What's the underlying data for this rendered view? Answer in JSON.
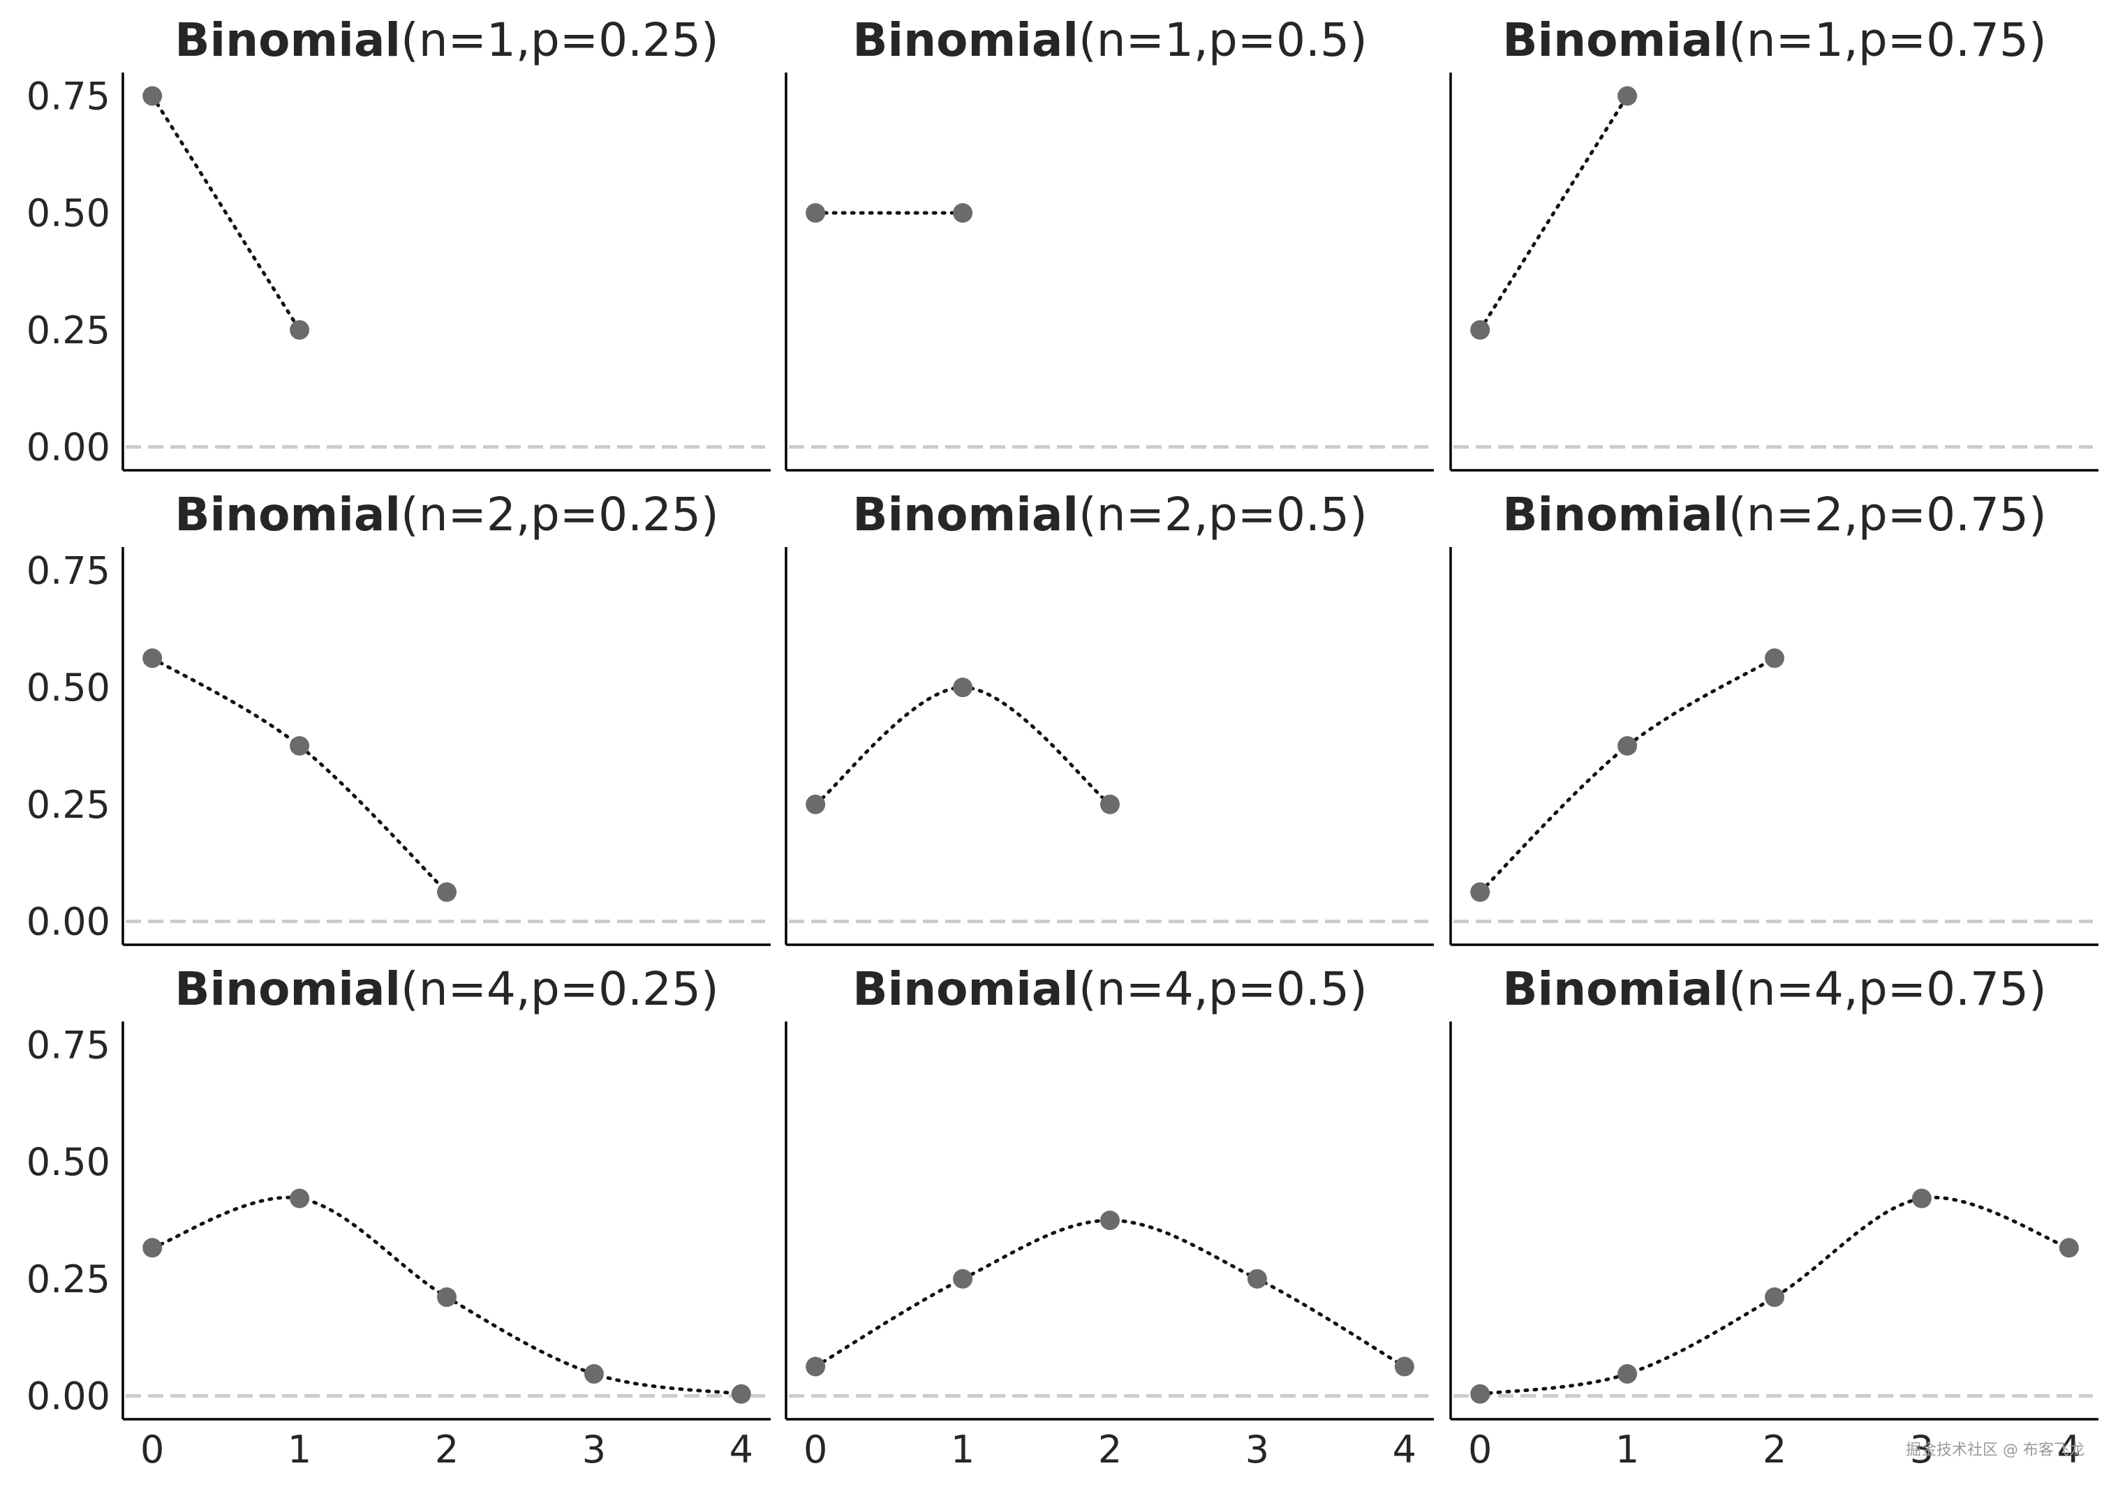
{
  "chart_data": [
    {
      "type": "line",
      "title_bold": "Binomial",
      "title_params": "(n=1,p=0.25)",
      "x": [
        0,
        1
      ],
      "values": [
        0.75,
        0.25
      ],
      "xlim": [
        -0.2,
        4.2
      ],
      "ylim": [
        -0.05,
        0.8
      ],
      "xticks": [],
      "yticks": [
        "0.00",
        "0.25",
        "0.50",
        "0.75"
      ],
      "baseline": 0
    },
    {
      "type": "line",
      "title_bold": "Binomial",
      "title_params": "(n=1,p=0.5)",
      "x": [
        0,
        1
      ],
      "values": [
        0.5,
        0.5
      ],
      "xlim": [
        -0.2,
        4.2
      ],
      "ylim": [
        -0.05,
        0.8
      ],
      "xticks": [],
      "yticks": [],
      "baseline": 0
    },
    {
      "type": "line",
      "title_bold": "Binomial",
      "title_params": "(n=1,p=0.75)",
      "x": [
        0,
        1
      ],
      "values": [
        0.25,
        0.75
      ],
      "xlim": [
        -0.2,
        4.2
      ],
      "ylim": [
        -0.05,
        0.8
      ],
      "xticks": [],
      "yticks": [],
      "baseline": 0
    },
    {
      "type": "line",
      "title_bold": "Binomial",
      "title_params": "(n=2,p=0.25)",
      "x": [
        0,
        1,
        2
      ],
      "values": [
        0.5625,
        0.375,
        0.0625
      ],
      "xlim": [
        -0.2,
        4.2
      ],
      "ylim": [
        -0.05,
        0.8
      ],
      "xticks": [],
      "yticks": [
        "0.00",
        "0.25",
        "0.50",
        "0.75"
      ],
      "baseline": 0
    },
    {
      "type": "line",
      "title_bold": "Binomial",
      "title_params": "(n=2,p=0.5)",
      "x": [
        0,
        1,
        2
      ],
      "values": [
        0.25,
        0.5,
        0.25
      ],
      "xlim": [
        -0.2,
        4.2
      ],
      "ylim": [
        -0.05,
        0.8
      ],
      "xticks": [],
      "yticks": [],
      "baseline": 0
    },
    {
      "type": "line",
      "title_bold": "Binomial",
      "title_params": "(n=2,p=0.75)",
      "x": [
        0,
        1,
        2
      ],
      "values": [
        0.0625,
        0.375,
        0.5625
      ],
      "xlim": [
        -0.2,
        4.2
      ],
      "ylim": [
        -0.05,
        0.8
      ],
      "xticks": [],
      "yticks": [],
      "baseline": 0
    },
    {
      "type": "line",
      "title_bold": "Binomial",
      "title_params": "(n=4,p=0.25)",
      "x": [
        0,
        1,
        2,
        3,
        4
      ],
      "values": [
        0.3164,
        0.4219,
        0.2109,
        0.0469,
        0.0039
      ],
      "xlim": [
        -0.2,
        4.2
      ],
      "ylim": [
        -0.05,
        0.8
      ],
      "xticks": [
        "0",
        "1",
        "2",
        "3",
        "4"
      ],
      "yticks": [
        "0.00",
        "0.25",
        "0.50",
        "0.75"
      ],
      "baseline": 0
    },
    {
      "type": "line",
      "title_bold": "Binomial",
      "title_params": "(n=4,p=0.5)",
      "x": [
        0,
        1,
        2,
        3,
        4
      ],
      "values": [
        0.0625,
        0.25,
        0.375,
        0.25,
        0.0625
      ],
      "xlim": [
        -0.2,
        4.2
      ],
      "ylim": [
        -0.05,
        0.8
      ],
      "xticks": [
        "0",
        "1",
        "2",
        "3",
        "4"
      ],
      "yticks": [],
      "baseline": 0
    },
    {
      "type": "line",
      "title_bold": "Binomial",
      "title_params": "(n=4,p=0.75)",
      "x": [
        0,
        1,
        2,
        3,
        4
      ],
      "values": [
        0.0039,
        0.0469,
        0.2109,
        0.4219,
        0.3164
      ],
      "xlim": [
        -0.2,
        4.2
      ],
      "ylim": [
        -0.05,
        0.8
      ],
      "xticks": [
        "0",
        "1",
        "2",
        "3",
        "4"
      ],
      "yticks": [],
      "baseline": 0
    }
  ],
  "watermark": "掘金技术社区 @ 布客飞龙",
  "colors": {
    "marker": "#6b6b6b",
    "line": "#111111",
    "baseline": "#cccccc",
    "axis": "#000000",
    "text": "#262626"
  }
}
